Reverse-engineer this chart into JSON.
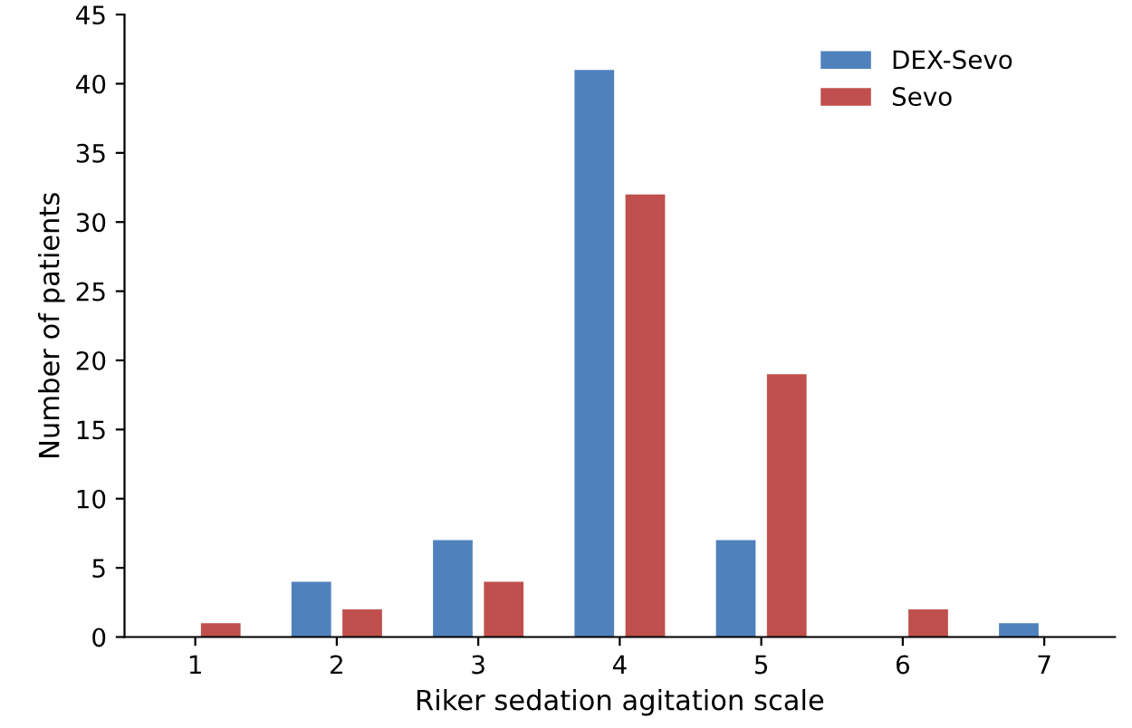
{
  "chart_data": {
    "type": "bar",
    "xlabel": "Riker sedation agitation scale",
    "ylabel": "Number of patients",
    "categories": [
      "1",
      "2",
      "3",
      "4",
      "5",
      "6",
      "7"
    ],
    "series": [
      {
        "name": "DEX-Sevo",
        "color": "#4f81bd",
        "values": [
          0,
          4,
          7,
          41,
          7,
          0,
          1
        ]
      },
      {
        "name": "Sevo",
        "color": "#c0504d",
        "values": [
          1,
          2,
          4,
          32,
          19,
          2,
          0
        ]
      }
    ],
    "ylim": [
      0,
      45
    ],
    "yticks": [
      0,
      5,
      10,
      15,
      20,
      25,
      30,
      35,
      40,
      45
    ],
    "grid": false,
    "legend": "top right"
  }
}
